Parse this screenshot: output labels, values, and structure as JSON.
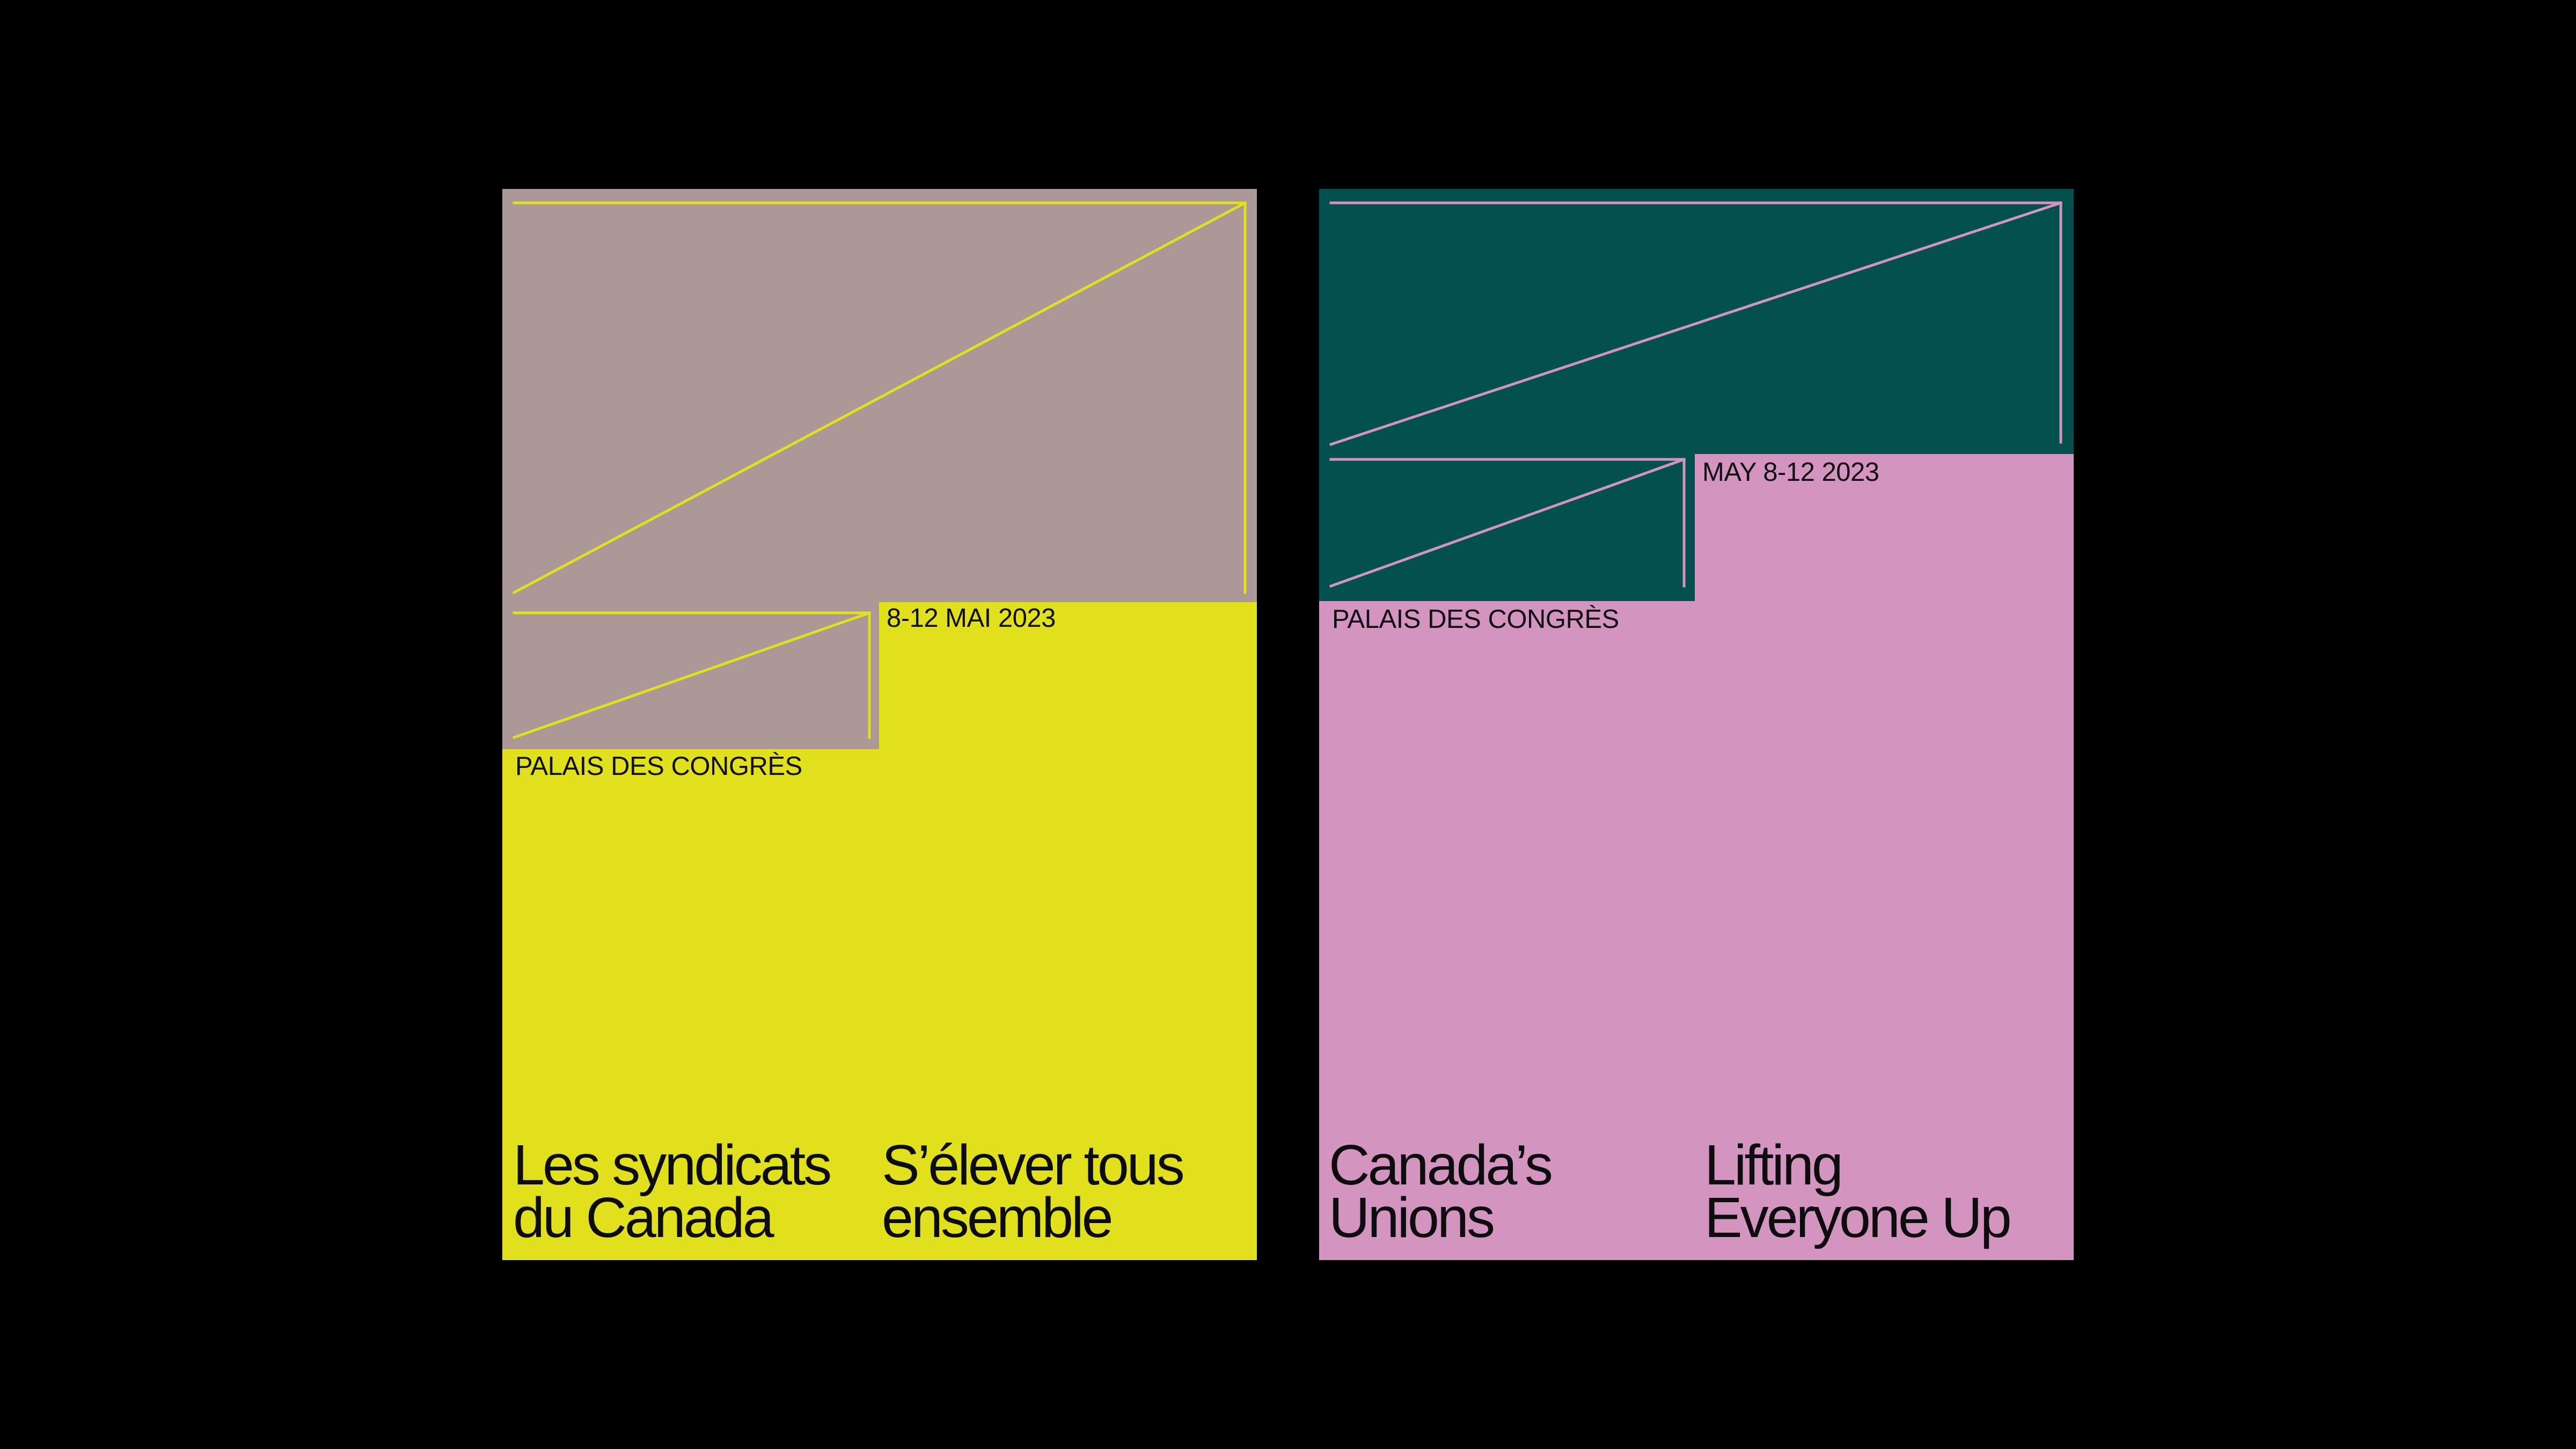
{
  "posters": {
    "french": {
      "date": "8-12 MAI 2023",
      "venue": "PALAIS DES CONGRÈS",
      "headline_left": [
        "Les syndicats",
        "du Canada"
      ],
      "headline_right": [
        "S’élever tous",
        "ensemble"
      ],
      "colors": {
        "background": "#e1e01c",
        "block": "#ab9897",
        "line": "#e1e01c",
        "text": "#111111"
      }
    },
    "english": {
      "date": "MAY 8-12 2023",
      "venue": "PALAIS DES CONGRÈS",
      "headline_left": [
        "Canada’s",
        "Unions"
      ],
      "headline_right": [
        "Lifting",
        "Everyone Up"
      ],
      "colors": {
        "background": "#d394bf",
        "block": "#02504f",
        "line": "#d394bf",
        "text": "#111111"
      }
    }
  },
  "colors": {
    "page_background": "#000000"
  }
}
